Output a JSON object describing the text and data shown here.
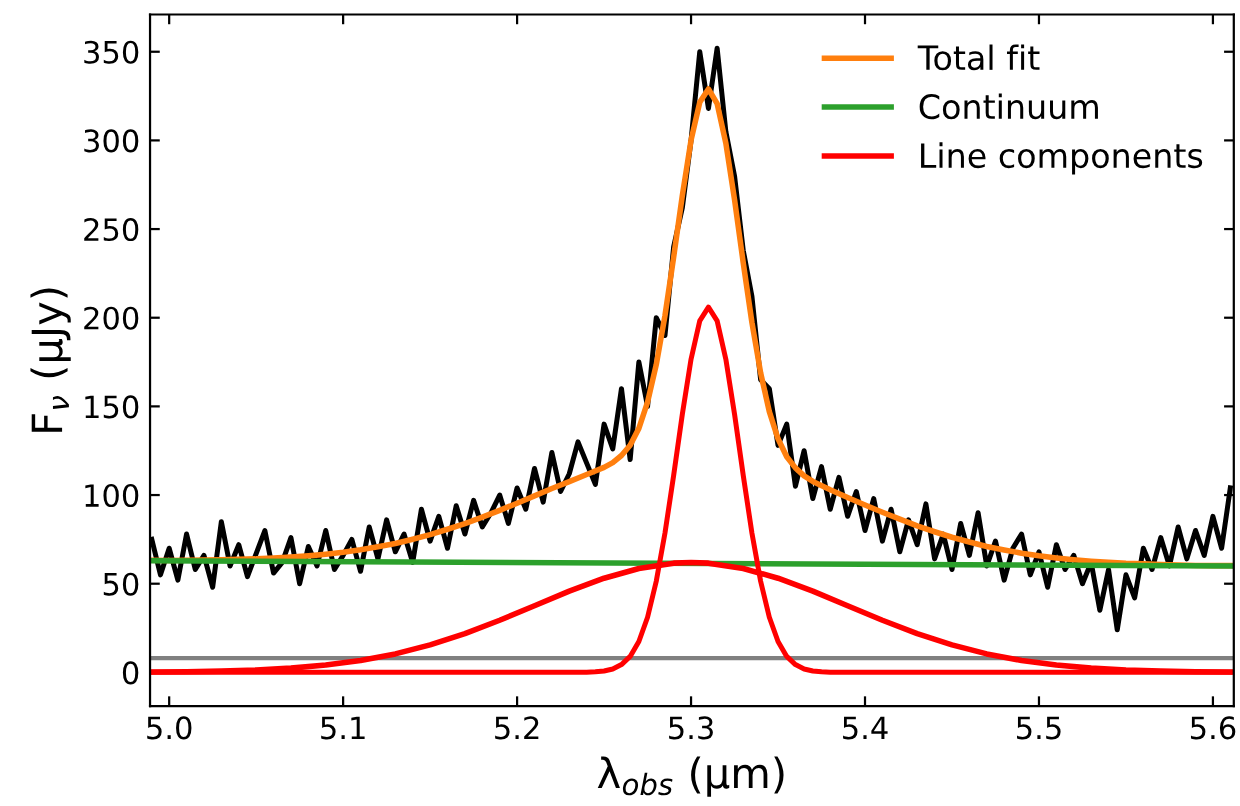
{
  "chart_data": {
    "type": "line",
    "xlabel": "λ$_{obs}$ (μm)",
    "ylabel": "F$_{ν}$ (μJy)",
    "xlim": [
      4.989,
      5.612
    ],
    "ylim": [
      -19,
      371
    ],
    "xticks": [
      {
        "value": 5.0,
        "label": "5.0"
      },
      5.1,
      5.2,
      5.3,
      5.4,
      5.5,
      5.6
    ],
    "yticks": [
      0,
      50,
      100,
      150,
      200,
      250,
      300,
      350
    ],
    "grid": false,
    "legend": "top right",
    "ref_lines": [
      {
        "axis": "y",
        "value": 8,
        "color": "#808080"
      }
    ],
    "series": [
      {
        "color": "#000000",
        "x": [
          4.99,
          4.995,
          5.0,
          5.005,
          5.01,
          5.015,
          5.02,
          5.025,
          5.03,
          5.035,
          5.04,
          5.045,
          5.05,
          5.055,
          5.06,
          5.065,
          5.07,
          5.075,
          5.08,
          5.085,
          5.09,
          5.095,
          5.1,
          5.105,
          5.11,
          5.115,
          5.12,
          5.125,
          5.13,
          5.135,
          5.14,
          5.145,
          5.15,
          5.155,
          5.16,
          5.165,
          5.17,
          5.175,
          5.18,
          5.185,
          5.19,
          5.195,
          5.2,
          5.205,
          5.21,
          5.215,
          5.22,
          5.225,
          5.23,
          5.235,
          5.24,
          5.245,
          5.25,
          5.255,
          5.26,
          5.265,
          5.27,
          5.275,
          5.28,
          5.285,
          5.29,
          5.295,
          5.3,
          5.305,
          5.31,
          5.315,
          5.32,
          5.325,
          5.33,
          5.335,
          5.34,
          5.345,
          5.35,
          5.355,
          5.36,
          5.365,
          5.37,
          5.375,
          5.38,
          5.385,
          5.39,
          5.395,
          5.4,
          5.405,
          5.41,
          5.415,
          5.42,
          5.425,
          5.43,
          5.435,
          5.44,
          5.445,
          5.45,
          5.455,
          5.46,
          5.465,
          5.47,
          5.475,
          5.48,
          5.485,
          5.49,
          5.495,
          5.5,
          5.505,
          5.51,
          5.515,
          5.52,
          5.525,
          5.53,
          5.535,
          5.54,
          5.545,
          5.55,
          5.555,
          5.56,
          5.565,
          5.57,
          5.575,
          5.58,
          5.585,
          5.59,
          5.595,
          5.6,
          5.605,
          5.61
        ],
        "values": [
          75,
          55,
          70,
          52,
          78,
          58,
          66,
          48,
          85,
          60,
          72,
          54,
          67,
          80,
          56,
          62,
          76,
          50,
          71,
          60,
          80,
          58,
          66,
          75,
          57,
          82,
          64,
          86,
          68,
          78,
          62,
          92,
          74,
          88,
          70,
          94,
          78,
          97,
          82,
          90,
          100,
          84,
          104,
          92,
          115,
          96,
          124,
          102,
          112,
          130,
          118,
          106,
          140,
          126,
          160,
          120,
          175,
          150,
          200,
          190,
          240,
          262,
          300,
          350,
          318,
          352,
          305,
          280,
          238,
          212,
          165,
          160,
          128,
          140,
          105,
          125,
          98,
          116,
          92,
          110,
          88,
          102,
          80,
          98,
          74,
          92,
          68,
          86,
          72,
          95,
          64,
          78,
          58,
          84,
          66,
          90,
          60,
          74,
          52,
          70,
          78,
          55,
          68,
          48,
          72,
          58,
          66,
          50,
          62,
          35,
          58,
          24,
          55,
          42,
          70,
          58,
          76,
          60,
          82,
          64,
          80,
          66,
          88,
          70,
          104
        ]
      },
      {
        "name": "Total fit",
        "color": "#ff7f0e",
        "x": [
          4.99,
          5.0,
          5.01,
          5.02,
          5.03,
          5.04,
          5.05,
          5.06,
          5.07,
          5.08,
          5.09,
          5.1,
          5.11,
          5.12,
          5.13,
          5.14,
          5.15,
          5.16,
          5.17,
          5.18,
          5.19,
          5.2,
          5.21,
          5.22,
          5.23,
          5.24,
          5.25,
          5.255,
          5.26,
          5.265,
          5.27,
          5.275,
          5.28,
          5.285,
          5.29,
          5.295,
          5.3,
          5.305,
          5.31,
          5.315,
          5.32,
          5.325,
          5.33,
          5.335,
          5.34,
          5.345,
          5.35,
          5.355,
          5.36,
          5.365,
          5.37,
          5.38,
          5.39,
          5.4,
          5.41,
          5.42,
          5.43,
          5.44,
          5.45,
          5.46,
          5.47,
          5.48,
          5.49,
          5.5,
          5.51,
          5.52,
          5.53,
          5.54,
          5.55,
          5.56,
          5.57,
          5.58,
          5.59,
          5.6,
          5.61
        ],
        "values": [
          63.2,
          63.1,
          63.2,
          63.4,
          63.5,
          63.8,
          64.0,
          64.5,
          65.0,
          65.7,
          66.6,
          67.7,
          69.1,
          70.8,
          72.7,
          75.1,
          77.7,
          80.7,
          83.9,
          87.6,
          91.4,
          95.4,
          99.5,
          103.7,
          107.6,
          111.6,
          115.6,
          118.3,
          122.3,
          128.1,
          137.6,
          152.4,
          173.5,
          201.1,
          234.2,
          269.0,
          300.1,
          321.5,
          329.0,
          320.7,
          298.5,
          266.6,
          231.0,
          197.3,
          168.9,
          147.0,
          131.7,
          121.6,
          115.3,
          110.8,
          107.7,
          103.0,
          98.6,
          94.4,
          90.3,
          86.4,
          82.6,
          79.3,
          76.2,
          73.5,
          71.0,
          69.0,
          67.2,
          65.7,
          64.5,
          63.5,
          62.7,
          62.1,
          61.5,
          61.2,
          60.8,
          60.6,
          60.3,
          60.2,
          60.2
        ]
      },
      {
        "name": "Continuum",
        "color": "#2ca02c",
        "x": [
          4.99,
          5.61
        ],
        "values": [
          63,
          60
        ]
      },
      {
        "name": "Line components",
        "color": "#ff0000",
        "x": [
          4.99,
          5.01,
          5.03,
          5.05,
          5.07,
          5.09,
          5.11,
          5.13,
          5.15,
          5.17,
          5.19,
          5.21,
          5.23,
          5.25,
          5.27,
          5.29,
          5.3,
          5.31,
          5.33,
          5.35,
          5.37,
          5.39,
          5.41,
          5.43,
          5.45,
          5.47,
          5.49,
          5.51,
          5.53,
          5.55,
          5.57,
          5.59,
          5.61
        ],
        "values": [
          0.2,
          0.3,
          0.7,
          1.3,
          2.4,
          4.1,
          6.7,
          10.4,
          15.5,
          21.8,
          29.4,
          37.6,
          45.8,
          53.1,
          58.6,
          61.6,
          62.0,
          61.6,
          58.6,
          53.1,
          45.8,
          37.6,
          29.4,
          21.8,
          15.5,
          10.4,
          6.7,
          4.1,
          2.4,
          1.3,
          0.7,
          0.3,
          0.2
        ]
      },
      {
        "color": "#ff0000",
        "x": [
          4.99,
          5.24,
          5.245,
          5.25,
          5.255,
          5.26,
          5.265,
          5.27,
          5.275,
          5.28,
          5.285,
          5.29,
          5.295,
          5.3,
          5.305,
          5.31,
          5.315,
          5.32,
          5.325,
          5.33,
          5.335,
          5.34,
          5.345,
          5.35,
          5.355,
          5.36,
          5.365,
          5.37,
          5.375,
          5.38,
          5.61
        ],
        "values": [
          0,
          0.1,
          0.3,
          0.8,
          1.9,
          4.4,
          9.0,
          17.4,
          31.1,
          51.4,
          78.5,
          111.1,
          145.6,
          176.6,
          198.2,
          206,
          198.2,
          176.6,
          145.6,
          111.1,
          78.5,
          51.4,
          31.1,
          17.4,
          9.0,
          4.4,
          1.9,
          0.8,
          0.3,
          0.1,
          0
        ]
      }
    ]
  }
}
